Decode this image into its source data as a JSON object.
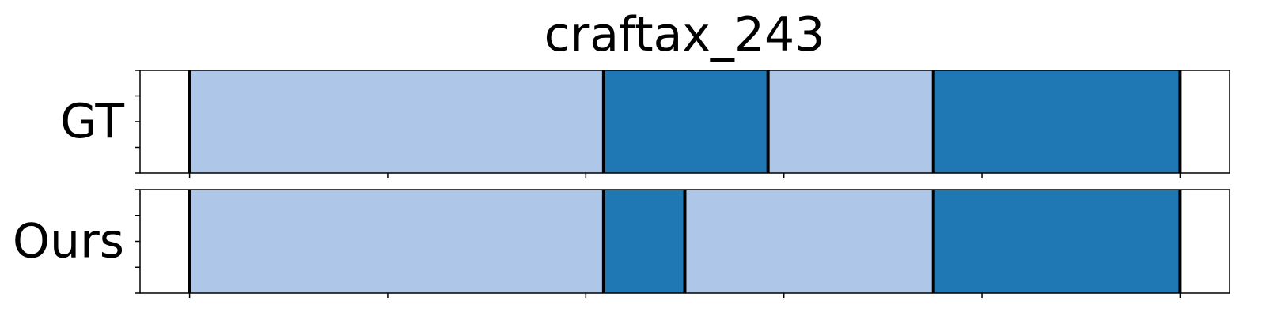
{
  "chart_data": {
    "type": "segmentation_timeline",
    "title": "craftax_243",
    "xlim": [
      0,
      1100
    ],
    "x_ticks": [
      50,
      250,
      450,
      650,
      850,
      1050
    ],
    "colors": {
      "light": "#aec7e8",
      "dark": "#1f77b4",
      "boundary": "#000000"
    },
    "rows": [
      {
        "label": "GT",
        "segments": [
          {
            "start": 50,
            "end": 468,
            "class": "light"
          },
          {
            "start": 468,
            "end": 634,
            "class": "dark"
          },
          {
            "start": 634,
            "end": 801,
            "class": "light"
          },
          {
            "start": 801,
            "end": 1050,
            "class": "dark"
          }
        ]
      },
      {
        "label": "Ours",
        "segments": [
          {
            "start": 50,
            "end": 468,
            "class": "light"
          },
          {
            "start": 468,
            "end": 550,
            "class": "dark"
          },
          {
            "start": 550,
            "end": 801,
            "class": "light"
          },
          {
            "start": 801,
            "end": 1050,
            "class": "dark"
          }
        ]
      }
    ]
  }
}
